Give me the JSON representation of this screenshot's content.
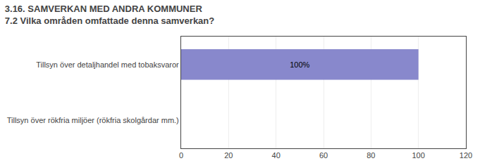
{
  "chart_data": {
    "type": "bar",
    "orientation": "horizontal",
    "title": "3.16. SAMVERKAN MED ANDRA KOMMUNER",
    "subtitle": "7.2 Vilka områden omfattade denna samverkan?",
    "categories": [
      "Tillsyn över detaljhandel med tobaksvaror",
      "Tillsyn över rökfria miljöer (rökfria skolgårdar mm.)"
    ],
    "values": [
      100,
      0
    ],
    "value_labels": [
      "100%",
      null
    ],
    "data_labels": true,
    "color": "#8888cc",
    "xlim": [
      0,
      120
    ],
    "xticks": [
      0,
      20,
      40,
      60,
      80,
      100,
      120
    ],
    "grid": true
  }
}
